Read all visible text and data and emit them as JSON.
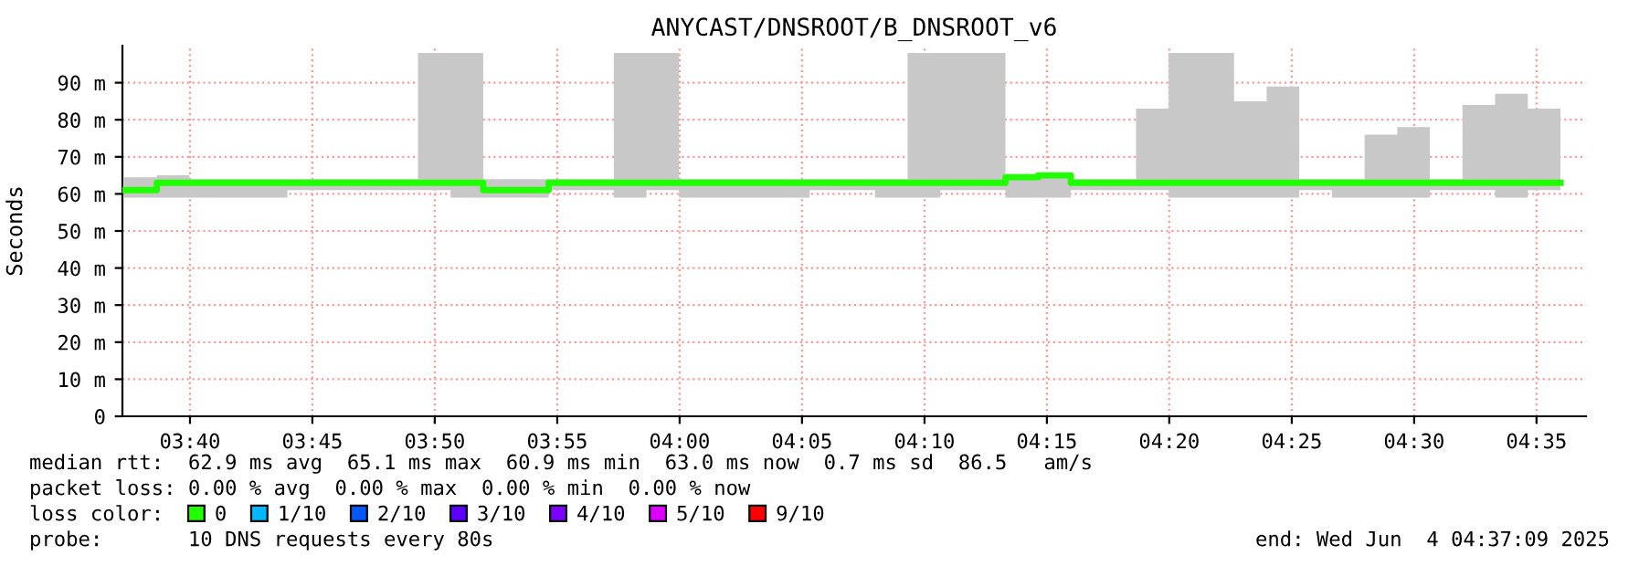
{
  "chart_data": {
    "type": "step",
    "title": "ANYCAST/DNSROOT/B_DNSROOT_v6",
    "ylabel": "Seconds",
    "legend_title": "loss color:",
    "x": [
      3.6219,
      3.6441,
      3.6663,
      3.6886,
      3.7108,
      3.733,
      3.7552,
      3.7774,
      3.7997,
      3.8219,
      3.8441,
      3.8663,
      3.8885,
      3.9108,
      3.933,
      3.9552,
      3.9774,
      3.9996,
      4.0219,
      4.0441,
      4.0663,
      4.0885,
      4.1107,
      4.133,
      4.1552,
      4.1774,
      4.1996,
      4.2218,
      4.2441,
      4.2663,
      4.2885,
      4.3107,
      4.3329,
      4.3552,
      4.3774,
      4.3996,
      4.4218,
      4.444,
      4.4663,
      4.4885,
      4.5107,
      4.5329,
      4.5551,
      4.5774,
      4.5996
    ],
    "series": [
      {
        "name": "0",
        "color": "#20ff00",
        "values": [
          61,
          63,
          63,
          63,
          63,
          63,
          63,
          63,
          63,
          63,
          63,
          61,
          61,
          63,
          63,
          63,
          63,
          63,
          63,
          63,
          63,
          63,
          63,
          63,
          63,
          63,
          63,
          64.5,
          65,
          63,
          63,
          63,
          63,
          63,
          63,
          63,
          63,
          63,
          63,
          63,
          63,
          63,
          63,
          63,
          63
        ],
        "upper": [
          64.5,
          65,
          64,
          64,
          64,
          64,
          64,
          64,
          64,
          98,
          98,
          64,
          64,
          64,
          64,
          98,
          98,
          64,
          64,
          64,
          64,
          64,
          64,
          64,
          98,
          98,
          98,
          65,
          65.5,
          64,
          64,
          83,
          98,
          98,
          85,
          89,
          64,
          64,
          76,
          78,
          64,
          84,
          87,
          83,
          83
        ],
        "lower": [
          59,
          59,
          59,
          59,
          59,
          61,
          61,
          61,
          61,
          61,
          59,
          59,
          59,
          61,
          61,
          59,
          61,
          59,
          59,
          59,
          59,
          61,
          61,
          59,
          59,
          61,
          61,
          59,
          59,
          61,
          61,
          61,
          59,
          59,
          59,
          59,
          61,
          59,
          59,
          59,
          61,
          61,
          59,
          61,
          61
        ]
      },
      {
        "name": "1/10",
        "color": "#00b8ff",
        "values": [
          null,
          null,
          null,
          null,
          null,
          null,
          null,
          null,
          null,
          null,
          null,
          null,
          null,
          null,
          null,
          null,
          null,
          null,
          null,
          null,
          null,
          null,
          null,
          null,
          null,
          null,
          null,
          null,
          null,
          null,
          null,
          null,
          null,
          null,
          null,
          null,
          null,
          null,
          null,
          null,
          null,
          null,
          null,
          null,
          null
        ]
      },
      {
        "name": "2/10",
        "color": "#0059ff",
        "values": [
          null,
          null,
          null,
          null,
          null,
          null,
          null,
          null,
          null,
          null,
          null,
          null,
          null,
          null,
          null,
          null,
          null,
          null,
          null,
          null,
          null,
          null,
          null,
          null,
          null,
          null,
          null,
          null,
          null,
          null,
          null,
          null,
          null,
          null,
          null,
          null,
          null,
          null,
          null,
          null,
          null,
          null,
          null,
          null,
          null
        ]
      },
      {
        "name": "3/10",
        "color": "#5e00ff",
        "values": [
          null,
          null,
          null,
          null,
          null,
          null,
          null,
          null,
          null,
          null,
          null,
          null,
          null,
          null,
          null,
          null,
          null,
          null,
          null,
          null,
          null,
          null,
          null,
          null,
          null,
          null,
          null,
          null,
          null,
          null,
          null,
          null,
          null,
          null,
          null,
          null,
          null,
          null,
          null,
          null,
          null,
          null,
          null,
          null,
          null
        ]
      },
      {
        "name": "4/10",
        "color": "#7e00ff",
        "values": [
          null,
          null,
          null,
          null,
          null,
          null,
          null,
          null,
          null,
          null,
          null,
          null,
          null,
          null,
          null,
          null,
          null,
          null,
          null,
          null,
          null,
          null,
          null,
          null,
          null,
          null,
          null,
          null,
          null,
          null,
          null,
          null,
          null,
          null,
          null,
          null,
          null,
          null,
          null,
          null,
          null,
          null,
          null,
          null,
          null
        ]
      },
      {
        "name": "5/10",
        "color": "#dd00ff",
        "values": [
          null,
          null,
          null,
          null,
          null,
          null,
          null,
          null,
          null,
          null,
          null,
          null,
          null,
          null,
          null,
          null,
          null,
          null,
          null,
          null,
          null,
          null,
          null,
          null,
          null,
          null,
          null,
          null,
          null,
          null,
          null,
          null,
          null,
          null,
          null,
          null,
          null,
          null,
          null,
          null,
          null,
          null,
          null,
          null,
          null
        ]
      },
      {
        "name": "9/10",
        "color": "#ff0000",
        "values": [
          null,
          null,
          null,
          null,
          null,
          null,
          null,
          null,
          null,
          null,
          null,
          null,
          null,
          null,
          null,
          null,
          null,
          null,
          null,
          null,
          null,
          null,
          null,
          null,
          null,
          null,
          null,
          null,
          null,
          null,
          null,
          null,
          null,
          null,
          null,
          null,
          null,
          null,
          null,
          null,
          null,
          null,
          null,
          null,
          null
        ]
      }
    ],
    "xlim": [
      3.6207,
      4.617
    ],
    "xticks": [
      {
        "value": 3.6667,
        "label": "03:40"
      },
      {
        "value": 3.75,
        "label": "03:45"
      },
      {
        "value": 3.8333,
        "label": "03:50"
      },
      {
        "value": 3.9167,
        "label": "03:55"
      },
      {
        "value": 4.0,
        "label": "04:00"
      },
      {
        "value": 4.0833,
        "label": "04:05"
      },
      {
        "value": 4.1667,
        "label": "04:10"
      },
      {
        "value": 4.25,
        "label": "04:15"
      },
      {
        "value": 4.3333,
        "label": "04:20"
      },
      {
        "value": 4.4167,
        "label": "04:25"
      },
      {
        "value": 4.5,
        "label": "04:30"
      },
      {
        "value": 4.5833,
        "label": "04:35"
      }
    ],
    "ylim": [
      0,
      100
    ],
    "yticks": [
      0,
      {
        "value": 10,
        "label": "10 m"
      },
      {
        "value": 20,
        "label": "20 m"
      },
      {
        "value": 30,
        "label": "30 m"
      },
      {
        "value": 40,
        "label": "40 m"
      },
      {
        "value": 50,
        "label": "50 m"
      },
      {
        "value": 60,
        "label": "60 m"
      },
      {
        "value": 70,
        "label": "70 m"
      },
      {
        "value": 80,
        "label": "80 m"
      },
      {
        "value": 90,
        "label": "90 m"
      }
    ],
    "grid": true,
    "legend": "bottom",
    "line_style": "solid",
    "marker": "none",
    "annotations": [
      "median rtt:  62.9 ms avg  65.1 ms max  60.9 ms min  63.0 ms now  0.7 ms sd  86.5   am/s",
      "packet loss: 0.00 % avg  0.00 % max  0.00 % min  0.00 % now",
      "probe:       10 DNS requests every 80s",
      "end: Wed Jun  4 04:37:09 2025"
    ]
  }
}
